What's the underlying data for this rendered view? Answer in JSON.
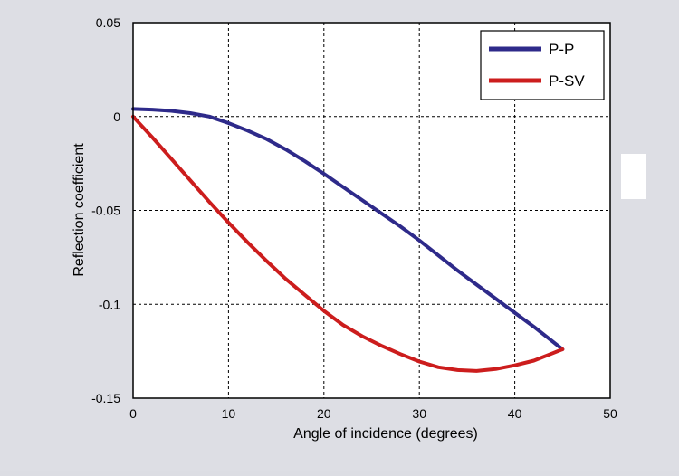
{
  "chart_data": {
    "type": "line",
    "title": "",
    "xlabel": "Angle of incidence (degrees)",
    "ylabel": "Reflection coefficient",
    "xlim": [
      0,
      50
    ],
    "ylim": [
      -0.15,
      0.05
    ],
    "xticks": [
      "0",
      "10",
      "20",
      "30",
      "40",
      "50"
    ],
    "yticks": [
      "0.05",
      "0",
      "-0.05",
      "-0.1",
      "-0.15"
    ],
    "grid": true,
    "legend_position": "top-right",
    "series": [
      {
        "name": "P-P",
        "color": "#2e2a8a",
        "x": [
          0,
          2,
          4,
          6,
          8,
          10,
          12,
          14,
          16,
          18,
          20,
          22,
          24,
          26,
          28,
          30,
          32,
          34,
          36,
          38,
          40,
          42,
          44,
          45
        ],
        "y": [
          0.004,
          0.0037,
          0.003,
          0.0018,
          0,
          -0.0035,
          -0.0075,
          -0.012,
          -0.0175,
          -0.0238,
          -0.0305,
          -0.0375,
          -0.0445,
          -0.0515,
          -0.0585,
          -0.066,
          -0.074,
          -0.082,
          -0.0895,
          -0.097,
          -0.1045,
          -0.112,
          -0.12,
          -0.124
        ]
      },
      {
        "name": "P-SV",
        "color": "#cc1d1d",
        "x": [
          0,
          2,
          4,
          6,
          8,
          10,
          12,
          14,
          16,
          18,
          20,
          22,
          24,
          26,
          28,
          30,
          32,
          34,
          36,
          38,
          40,
          42,
          44,
          45
        ],
        "y": [
          0,
          -0.011,
          -0.0225,
          -0.034,
          -0.0455,
          -0.0565,
          -0.067,
          -0.077,
          -0.0865,
          -0.095,
          -0.1035,
          -0.111,
          -0.117,
          -0.122,
          -0.1265,
          -0.1305,
          -0.1335,
          -0.135,
          -0.1355,
          -0.1345,
          -0.1325,
          -0.13,
          -0.126,
          -0.124
        ]
      }
    ]
  }
}
